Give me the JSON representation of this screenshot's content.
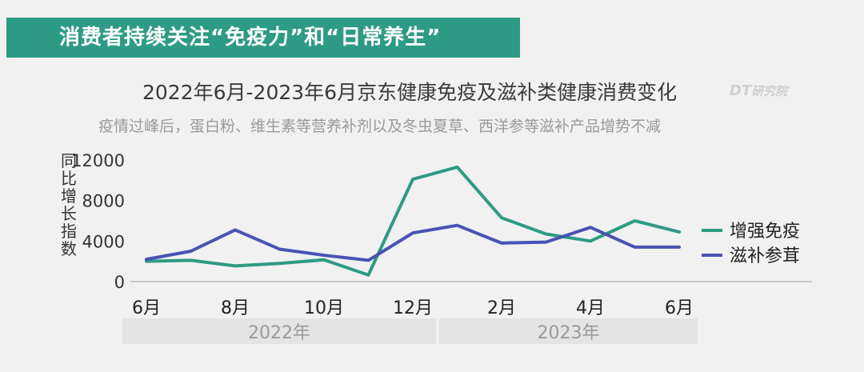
{
  "banner": {
    "text": "消费者持续关注“免疫力”和“日常养生”"
  },
  "watermark": {
    "logo": "DT",
    "text": "研究院"
  },
  "chart_data": {
    "type": "line",
    "title": "2022年6月-2023年6月京东健康免疫及滋补类健康消费变化",
    "subtitle": "疫情过峰后，蛋白粉、维生素等营养补剂以及冬虫夏草、西洋参等滋补产品增势不减",
    "ylabel": "同比增长指数",
    "ylim": [
      0,
      12000
    ],
    "yticks": [
      0,
      4000,
      8000,
      12000
    ],
    "ytick_labels": [
      "0",
      "4000",
      "8000",
      "12000"
    ],
    "x": [
      "2022-06",
      "2022-07",
      "2022-08",
      "2022-09",
      "2022-10",
      "2022-11",
      "2022-12",
      "2023-01",
      "2023-02",
      "2023-03",
      "2023-04",
      "2023-05",
      "2023-06"
    ],
    "xtick_labels": [
      "6月",
      "",
      "8月",
      "",
      "10月",
      "",
      "12月",
      "",
      "2月",
      "",
      "4月",
      "",
      "6月"
    ],
    "year_groups": [
      {
        "label": "2022年",
        "start": "2022-06",
        "end": "2022-12"
      },
      {
        "label": "2023年",
        "start": "2023-01",
        "end": "2023-06"
      }
    ],
    "grid": false,
    "legend_position": "right",
    "series": [
      {
        "name": "增强免疫",
        "color": "#2e9b84",
        "values": [
          2000,
          2100,
          1550,
          1800,
          2150,
          650,
          10100,
          11300,
          6300,
          4700,
          4000,
          6000,
          4900
        ]
      },
      {
        "name": "滋补参茸",
        "color": "#4a52b3",
        "values": [
          2200,
          3000,
          5100,
          3200,
          2600,
          2100,
          4800,
          5550,
          3800,
          3900,
          5350,
          3400,
          3400
        ]
      }
    ]
  }
}
